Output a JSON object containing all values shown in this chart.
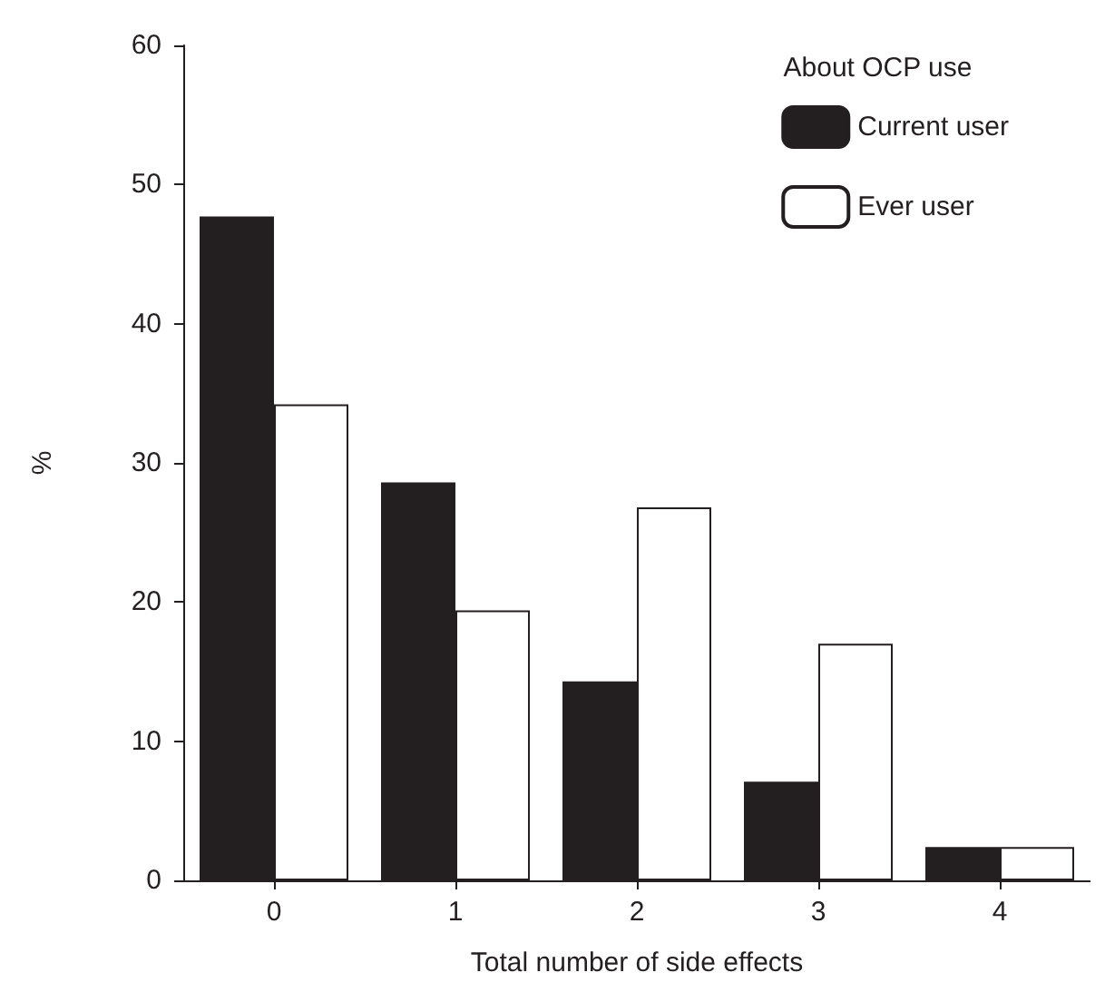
{
  "chart_data": {
    "type": "bar",
    "xlabel": "Total number of side effects",
    "ylabel": "%",
    "legend_title": "About OCP use",
    "categories": [
      "0",
      "1",
      "2",
      "3",
      "4"
    ],
    "series": [
      {
        "name": "Current user",
        "color": "#231f20",
        "values": [
          47.7,
          28.6,
          14.3,
          7.1,
          2.4
        ]
      },
      {
        "name": "Ever user",
        "color": "#ffffff",
        "values": [
          34.2,
          19.4,
          26.8,
          17.0,
          2.4
        ]
      }
    ],
    "ylim": [
      0,
      60
    ],
    "yticks": [
      0,
      10,
      20,
      30,
      40,
      50,
      60
    ],
    "grid": false,
    "legend": "top right"
  }
}
